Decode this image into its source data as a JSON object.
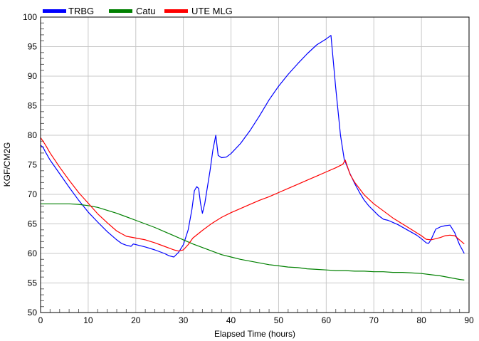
{
  "chart_data": {
    "type": "line",
    "xlabel": "Elapsed Time (hours)",
    "ylabel": "KGF/CM2G",
    "xlim": [
      0,
      90
    ],
    "ylim": [
      50,
      100
    ],
    "x_ticks": [
      0,
      10,
      20,
      30,
      40,
      50,
      60,
      70,
      80,
      90
    ],
    "y_ticks": [
      50,
      55,
      60,
      65,
      70,
      75,
      80,
      85,
      90,
      95,
      100
    ],
    "grid": true,
    "legend_position": "top-left",
    "series": [
      {
        "name": "TRBG",
        "color": "#0000ff",
        "points": [
          [
            0,
            78.3
          ],
          [
            0.5,
            78.0
          ],
          [
            1,
            77.2
          ],
          [
            2,
            75.8
          ],
          [
            4,
            73.5
          ],
          [
            6,
            71.2
          ],
          [
            8,
            69.0
          ],
          [
            10,
            67.0
          ],
          [
            12,
            65.3
          ],
          [
            14,
            63.7
          ],
          [
            16,
            62.3
          ],
          [
            17,
            61.7
          ],
          [
            18,
            61.4
          ],
          [
            19,
            61.2
          ],
          [
            19.5,
            61.6
          ],
          [
            20,
            61.5
          ],
          [
            22,
            61.1
          ],
          [
            24,
            60.6
          ],
          [
            26,
            60.0
          ],
          [
            27,
            59.6
          ],
          [
            28,
            59.4
          ],
          [
            29,
            60.2
          ],
          [
            30,
            61.5
          ],
          [
            31,
            64.0
          ],
          [
            31.8,
            67.5
          ],
          [
            32.3,
            70.6
          ],
          [
            32.8,
            71.3
          ],
          [
            33.2,
            71.0
          ],
          [
            33.6,
            68.5
          ],
          [
            34,
            66.8
          ],
          [
            34.5,
            68.5
          ],
          [
            35,
            71.0
          ],
          [
            35.6,
            74.0
          ],
          [
            36.2,
            77.5
          ],
          [
            36.8,
            80.0
          ],
          [
            37.3,
            76.6
          ],
          [
            38,
            76.2
          ],
          [
            39,
            76.3
          ],
          [
            40,
            76.9
          ],
          [
            42,
            78.6
          ],
          [
            44,
            80.8
          ],
          [
            46,
            83.3
          ],
          [
            48,
            86.0
          ],
          [
            50,
            88.3
          ],
          [
            52,
            90.3
          ],
          [
            54,
            92.1
          ],
          [
            56,
            93.8
          ],
          [
            58,
            95.3
          ],
          [
            60,
            96.3
          ],
          [
            61,
            96.9
          ],
          [
            62,
            88.0
          ],
          [
            63,
            80.0
          ],
          [
            63.8,
            75.8
          ],
          [
            64,
            75.5
          ],
          [
            65,
            73.5
          ],
          [
            66,
            71.8
          ],
          [
            67,
            70.3
          ],
          [
            68,
            69.0
          ],
          [
            69,
            68.0
          ],
          [
            70,
            67.2
          ],
          [
            71,
            66.4
          ],
          [
            72,
            65.8
          ],
          [
            73,
            65.6
          ],
          [
            75,
            64.9
          ],
          [
            77,
            64.0
          ],
          [
            79,
            63.1
          ],
          [
            80,
            62.5
          ],
          [
            81,
            61.8
          ],
          [
            81.5,
            61.7
          ],
          [
            82,
            62.3
          ],
          [
            83,
            64.1
          ],
          [
            84,
            64.5
          ],
          [
            85,
            64.7
          ],
          [
            86,
            64.8
          ],
          [
            87,
            63.5
          ],
          [
            88,
            61.5
          ],
          [
            89,
            60.0
          ]
        ]
      },
      {
        "name": "Catu",
        "color": "#008000",
        "points": [
          [
            0,
            68.4
          ],
          [
            3,
            68.4
          ],
          [
            6,
            68.4
          ],
          [
            8,
            68.3
          ],
          [
            10,
            68.1
          ],
          [
            12,
            67.8
          ],
          [
            14,
            67.3
          ],
          [
            16,
            66.8
          ],
          [
            18,
            66.2
          ],
          [
            20,
            65.6
          ],
          [
            22,
            65.0
          ],
          [
            24,
            64.4
          ],
          [
            26,
            63.7
          ],
          [
            28,
            63.0
          ],
          [
            30,
            62.3
          ],
          [
            32,
            61.6
          ],
          [
            34,
            61.0
          ],
          [
            36,
            60.4
          ],
          [
            38,
            59.8
          ],
          [
            40,
            59.4
          ],
          [
            42,
            59.0
          ],
          [
            44,
            58.7
          ],
          [
            46,
            58.4
          ],
          [
            48,
            58.1
          ],
          [
            50,
            57.9
          ],
          [
            52,
            57.7
          ],
          [
            54,
            57.6
          ],
          [
            56,
            57.4
          ],
          [
            58,
            57.3
          ],
          [
            60,
            57.2
          ],
          [
            62,
            57.1
          ],
          [
            64,
            57.1
          ],
          [
            66,
            57.0
          ],
          [
            68,
            57.0
          ],
          [
            70,
            56.9
          ],
          [
            72,
            56.9
          ],
          [
            74,
            56.8
          ],
          [
            76,
            56.8
          ],
          [
            78,
            56.7
          ],
          [
            80,
            56.6
          ],
          [
            82,
            56.4
          ],
          [
            84,
            56.2
          ],
          [
            86,
            55.9
          ],
          [
            88,
            55.6
          ],
          [
            89,
            55.5
          ]
        ]
      },
      {
        "name": "UTE MLG",
        "color": "#ff0000",
        "points": [
          [
            0,
            79.6
          ],
          [
            1,
            78.4
          ],
          [
            2,
            77.0
          ],
          [
            4,
            74.6
          ],
          [
            6,
            72.4
          ],
          [
            8,
            70.3
          ],
          [
            10,
            68.5
          ],
          [
            12,
            66.7
          ],
          [
            14,
            65.2
          ],
          [
            16,
            63.8
          ],
          [
            18,
            62.9
          ],
          [
            20,
            62.6
          ],
          [
            22,
            62.3
          ],
          [
            24,
            61.8
          ],
          [
            26,
            61.2
          ],
          [
            28,
            60.6
          ],
          [
            29,
            60.4
          ],
          [
            30,
            60.6
          ],
          [
            31,
            61.5
          ],
          [
            32,
            62.6
          ],
          [
            34,
            63.9
          ],
          [
            36,
            65.1
          ],
          [
            38,
            66.1
          ],
          [
            40,
            66.9
          ],
          [
            42,
            67.6
          ],
          [
            44,
            68.3
          ],
          [
            46,
            69.0
          ],
          [
            48,
            69.6
          ],
          [
            50,
            70.3
          ],
          [
            52,
            71.0
          ],
          [
            54,
            71.7
          ],
          [
            56,
            72.4
          ],
          [
            58,
            73.1
          ],
          [
            60,
            73.8
          ],
          [
            62,
            74.5
          ],
          [
            63.5,
            75.1
          ],
          [
            64,
            75.8
          ],
          [
            65,
            73.4
          ],
          [
            66,
            72.0
          ],
          [
            68,
            69.9
          ],
          [
            70,
            68.4
          ],
          [
            72,
            67.2
          ],
          [
            74,
            66.0
          ],
          [
            76,
            65.0
          ],
          [
            78,
            64.0
          ],
          [
            80,
            63.0
          ],
          [
            81,
            62.4
          ],
          [
            82,
            62.3
          ],
          [
            83,
            62.5
          ],
          [
            84,
            62.7
          ],
          [
            85,
            63.0
          ],
          [
            86,
            63.1
          ],
          [
            87,
            63.0
          ],
          [
            88,
            62.3
          ],
          [
            89,
            61.6
          ]
        ]
      }
    ]
  }
}
